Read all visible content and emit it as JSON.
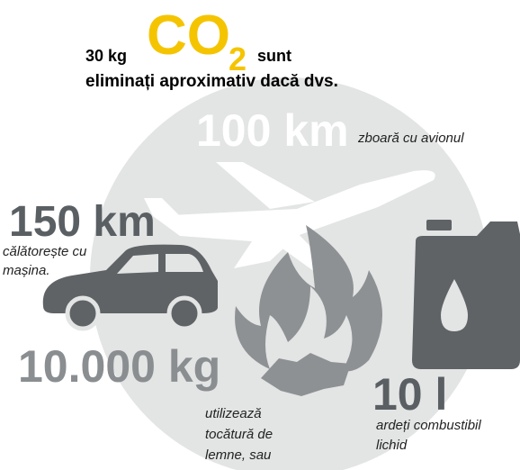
{
  "header": {
    "amount": "30 kg",
    "gas": "CO",
    "gas_subscript": "2",
    "verb": "sunt",
    "line2": "eliminați aproximativ dacă dvs."
  },
  "items": [
    {
      "quantity": "100 km",
      "caption": [
        "zboară cu avionul"
      ]
    },
    {
      "quantity": "150 km",
      "caption": [
        "călătorește cu",
        "mașina."
      ]
    },
    {
      "quantity": "10.000 kg",
      "caption": [
        "utilizează",
        "tocătură de",
        "lemne, sau"
      ]
    },
    {
      "quantity": "10 l",
      "caption": [
        "ardeți combustibil",
        "lichid"
      ]
    }
  ]
}
